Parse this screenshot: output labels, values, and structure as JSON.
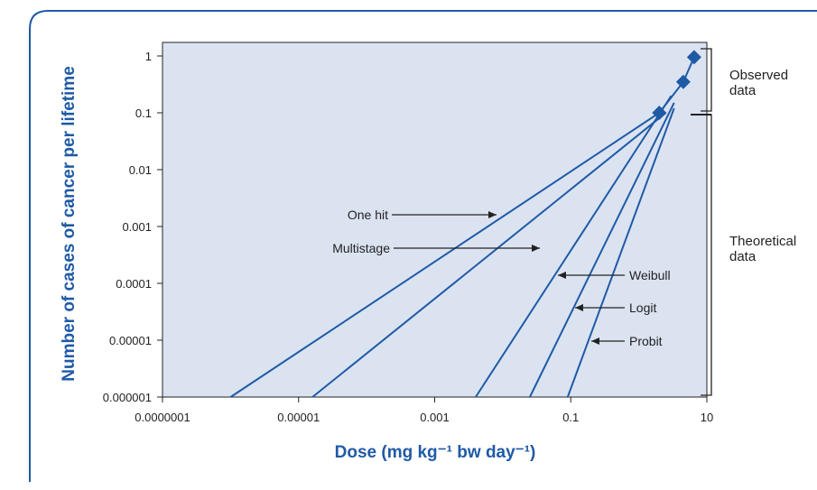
{
  "colors": {
    "plot_bg": "#dbe3f1",
    "line": "#1f5aa6",
    "axis_label": "#1f5aa6",
    "text": "#222222",
    "frame": "#1f5aa6"
  },
  "chart_data": {
    "type": "line",
    "xscale": "log",
    "yscale": "log",
    "xlim": [
      1e-07,
      10
    ],
    "ylim": [
      1e-06,
      1
    ],
    "xlabel": "Dose (mg kg⁻¹ bw day⁻¹)",
    "ylabel": "Number of cases of cancer per lifetime",
    "xticks": [
      "0.0000001",
      "0.00001",
      "0.001",
      "0.1",
      "10"
    ],
    "yticks": [
      "1",
      "0.1",
      "0.01",
      "0.001",
      "0.0001",
      "0.00001",
      "0.000001"
    ],
    "series": [
      {
        "name": "One hit",
        "x": [
          1e-06,
          2.0
        ],
        "y": [
          1e-06,
          0.1
        ]
      },
      {
        "name": "Multistage",
        "x": [
          1.6e-05,
          2.5
        ],
        "y": [
          1e-06,
          0.1
        ]
      },
      {
        "name": "Weibull",
        "x": [
          0.004,
          3.0
        ],
        "y": [
          1e-06,
          0.2
        ]
      },
      {
        "name": "Logit",
        "x": [
          0.025,
          3.3
        ],
        "y": [
          1e-06,
          0.15
        ]
      },
      {
        "name": "Probit",
        "x": [
          0.09,
          3.3
        ],
        "y": [
          1e-06,
          0.12
        ]
      }
    ],
    "observed_points": {
      "x": [
        2.0,
        4.5,
        6.5
      ],
      "y": [
        0.1,
        0.35,
        0.95
      ]
    },
    "annotations": [
      {
        "label": "One hit",
        "target_series": "One hit"
      },
      {
        "label": "Multistage",
        "target_series": "Multistage"
      },
      {
        "label": "Weibull",
        "target_series": "Weibull"
      },
      {
        "label": "Logit",
        "target_series": "Logit"
      },
      {
        "label": "Probit",
        "target_series": "Probit"
      }
    ],
    "brackets": [
      {
        "label_lines": [
          "Observed",
          "data"
        ],
        "y_range": [
          0.1,
          1
        ]
      },
      {
        "label_lines": [
          "Theoretical",
          "data"
        ],
        "y_range": [
          1e-06,
          0.1
        ]
      }
    ],
    "grid": false
  }
}
